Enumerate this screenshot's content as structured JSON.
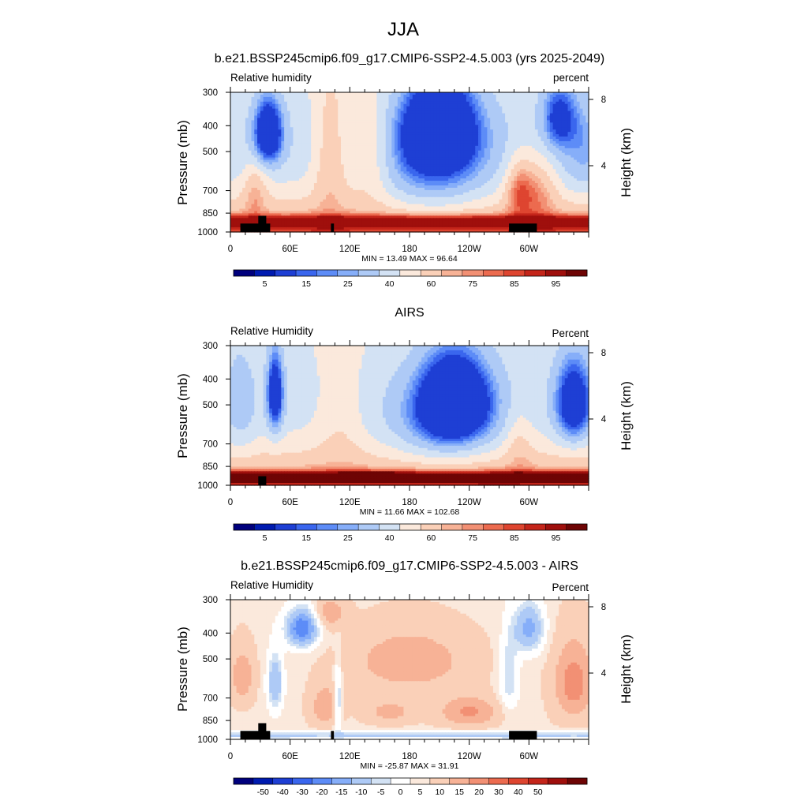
{
  "figure": {
    "title": "JJA"
  },
  "colors": {
    "rh_levels": [
      "#00007d",
      "#001bb0",
      "#1e3fd4",
      "#3a66ee",
      "#5d8cf7",
      "#86aef9",
      "#aecaf6",
      "#d3e2f4",
      "#fbe9dc",
      "#fad0b8",
      "#f7b296",
      "#f29074",
      "#ec6b4f",
      "#de4530",
      "#c4251a",
      "#9f0f0c",
      "#6e0404"
    ],
    "diff_levels": [
      "#00007d",
      "#001bb0",
      "#1e3fd4",
      "#3a66ee",
      "#5d8cf7",
      "#86aef9",
      "#aecaf6",
      "#d3e2f4",
      "#ffffff",
      "#fbe9dc",
      "#fad0b8",
      "#f7b296",
      "#f29074",
      "#ec6b4f",
      "#de4530",
      "#c4251a",
      "#9f0f0c",
      "#6e0404"
    ],
    "terrain": "#000000"
  },
  "chart_data": [
    {
      "type": "heatmap",
      "title": "b.e21.BSSP245cmip6.f09_g17.CMIP6-SSP2-4.5.003 (yrs 2025-2049)",
      "left_label": "Relative humidity",
      "right_label": "percent",
      "ylabel": "Pressure (mb)",
      "ylabel_right": "Height (km)",
      "x_ticks": [
        "0",
        "60E",
        "120E",
        "180",
        "120W",
        "60W"
      ],
      "x_tick_values": [
        0,
        60,
        120,
        180,
        240,
        300
      ],
      "xlim": [
        0,
        360
      ],
      "y_ticks": [
        "300",
        "400",
        "500",
        "700",
        "850",
        "1000"
      ],
      "y_tick_values": [
        300,
        400,
        500,
        700,
        850,
        1000
      ],
      "ylim": [
        300,
        1000
      ],
      "height_ticks": [
        "4",
        "8"
      ],
      "height_tick_values": [
        4,
        8
      ],
      "stats_text": "MIN =  13.49  MAX =  96.64",
      "min": 13.49,
      "max": 96.64,
      "colorbar_labels": [
        "5",
        "15",
        "25",
        "40",
        "60",
        "75",
        "85",
        "95"
      ],
      "field": "rh_model",
      "terrain": [
        [
          10,
          40,
          930
        ],
        [
          28,
          36,
          870
        ],
        [
          101,
          104,
          930
        ],
        [
          280,
          308,
          930
        ]
      ]
    },
    {
      "type": "heatmap",
      "title": "AIRS",
      "left_label": "Relative Humidity",
      "right_label": "Percent",
      "ylabel": "Pressure (mb)",
      "ylabel_right": "Height (km)",
      "x_ticks": [
        "0",
        "60E",
        "120E",
        "180",
        "120W",
        "60W"
      ],
      "x_tick_values": [
        0,
        60,
        120,
        180,
        240,
        300
      ],
      "xlim": [
        0,
        360
      ],
      "y_ticks": [
        "300",
        "400",
        "500",
        "700",
        "850",
        "1000"
      ],
      "y_tick_values": [
        300,
        400,
        500,
        700,
        850,
        1000
      ],
      "ylim": [
        300,
        1000
      ],
      "height_ticks": [
        "4",
        "8"
      ],
      "height_tick_values": [
        4,
        8
      ],
      "stats_text": "MIN =  11.66  MAX = 102.68",
      "min": 11.66,
      "max": 102.68,
      "colorbar_labels": [
        "5",
        "15",
        "25",
        "40",
        "60",
        "75",
        "85",
        "95"
      ],
      "field": "rh_airs",
      "terrain": [
        [
          28,
          36,
          925
        ]
      ]
    },
    {
      "type": "heatmap",
      "title": "b.e21.BSSP245cmip6.f09_g17.CMIP6-SSP2-4.5.003 - AIRS",
      "left_label": "Relative Humidity",
      "right_label": "Percent",
      "ylabel": "Pressure (mb)",
      "ylabel_right": "Height (km)",
      "x_ticks": [
        "0",
        "60E",
        "120E",
        "180",
        "120W",
        "60W"
      ],
      "x_tick_values": [
        0,
        60,
        120,
        180,
        240,
        300
      ],
      "xlim": [
        0,
        360
      ],
      "y_ticks": [
        "300",
        "400",
        "500",
        "700",
        "850",
        "1000"
      ],
      "y_tick_values": [
        300,
        400,
        500,
        700,
        850,
        1000
      ],
      "ylim": [
        300,
        1000
      ],
      "height_ticks": [
        "4",
        "8"
      ],
      "height_tick_values": [
        4,
        8
      ],
      "stats_text": "MIN = -25.87  MAX =  31.91",
      "min": -25.87,
      "max": 31.91,
      "colorbar_labels": [
        "-50",
        "-40",
        "-30",
        "-20",
        "-15",
        "-10",
        "-5",
        "0",
        "5",
        "10",
        "15",
        "20",
        "30",
        "40",
        "50"
      ],
      "field": "rh_diff",
      "terrain": [
        [
          10,
          40,
          930
        ],
        [
          28,
          36,
          870
        ],
        [
          101,
          104,
          930
        ],
        [
          280,
          308,
          930
        ]
      ]
    }
  ]
}
